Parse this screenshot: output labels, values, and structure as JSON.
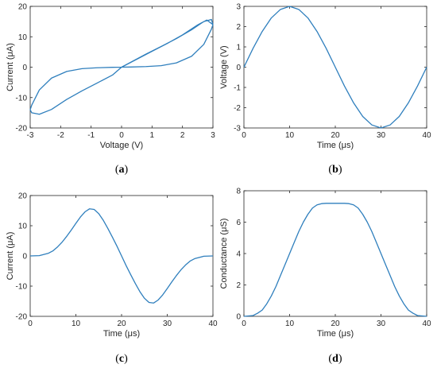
{
  "chart_data": [
    {
      "id": "a",
      "type": "line",
      "panel_label": "a",
      "xlabel": "Voltage (V)",
      "ylabel": "Current (μA)",
      "xlim": [
        -3,
        3
      ],
      "ylim": [
        -20,
        20
      ],
      "xticks": [
        -3,
        -2,
        -1,
        0,
        1,
        2,
        3
      ],
      "yticks": [
        -20,
        -10,
        0,
        10,
        20
      ],
      "series": [
        {
          "x": [
            0,
            0.5,
            1.0,
            1.5,
            2.0,
            2.5,
            2.8,
            3.0,
            2.95,
            2.7,
            2.3,
            1.8,
            1.3,
            0.8,
            0.3,
            0,
            -0.3,
            -0.8,
            -1.3,
            -1.8,
            -2.3,
            -2.7,
            -2.95,
            -3.0,
            -2.95,
            -2.7,
            -2.3,
            -1.8,
            -1.3,
            -0.8,
            -0.3,
            0,
            0.3,
            0.8,
            1.3,
            1.8,
            2.3,
            2.7,
            2.95,
            3.0
          ],
          "y": [
            0,
            2.6,
            5.2,
            7.8,
            10.6,
            13.9,
            15.5,
            14,
            12.5,
            7.5,
            3.6,
            1.4,
            0.5,
            0.2,
            0.05,
            0,
            -0.05,
            -0.2,
            -0.5,
            -1.4,
            -3.6,
            -7.5,
            -12.5,
            -14,
            -15,
            -15.5,
            -13.9,
            -10.6,
            -7.8,
            -5.2,
            -2.6,
            0,
            1.6,
            4.3,
            6.8,
            9.4,
            12.3,
            15.0,
            15.7,
            14
          ]
        }
      ]
    },
    {
      "id": "b",
      "type": "line",
      "panel_label": "b",
      "xlabel": "Time (μs)",
      "ylabel": "Voltage (V)",
      "xlim": [
        0,
        40
      ],
      "ylim": [
        -3,
        3
      ],
      "xticks": [
        0,
        10,
        20,
        30,
        40
      ],
      "yticks": [
        -3,
        -2,
        -1,
        0,
        1,
        2,
        3
      ],
      "series": [
        {
          "x": [
            0,
            2,
            4,
            6,
            8,
            10,
            12,
            14,
            16,
            18,
            20,
            22,
            24,
            26,
            28,
            30,
            32,
            34,
            36,
            38,
            40
          ],
          "y": [
            0,
            0.93,
            1.76,
            2.43,
            2.85,
            3.0,
            2.85,
            2.43,
            1.76,
            0.93,
            0,
            -0.93,
            -1.76,
            -2.43,
            -2.85,
            -3.0,
            -2.85,
            -2.43,
            -1.76,
            -0.93,
            0
          ]
        }
      ]
    },
    {
      "id": "c",
      "type": "line",
      "panel_label": "c",
      "xlabel": "Time (μs)",
      "ylabel": "Current (μA)",
      "xlim": [
        0,
        40
      ],
      "ylim": [
        -20,
        20
      ],
      "xticks": [
        0,
        10,
        20,
        30,
        40
      ],
      "yticks": [
        -20,
        -10,
        0,
        10,
        20
      ],
      "series": [
        {
          "x": [
            0,
            2,
            4,
            5,
            6,
            7,
            8,
            9,
            10,
            11,
            12,
            13,
            14,
            15,
            16,
            17,
            18,
            19,
            20,
            21,
            22,
            23,
            24,
            25,
            26,
            27,
            28,
            29,
            30,
            31,
            32,
            33,
            34,
            35,
            36,
            38,
            40
          ],
          "y": [
            0,
            0.1,
            0.9,
            1.7,
            3.0,
            4.6,
            6.5,
            8.6,
            10.8,
            12.9,
            14.6,
            15.6,
            15.4,
            14.0,
            11.8,
            9.1,
            6.2,
            3.2,
            0,
            -3.2,
            -6.2,
            -9.1,
            -11.8,
            -14.0,
            -15.4,
            -15.6,
            -14.6,
            -12.9,
            -10.8,
            -8.6,
            -6.5,
            -4.6,
            -3.0,
            -1.7,
            -0.9,
            -0.1,
            0
          ]
        }
      ]
    },
    {
      "id": "d",
      "type": "line",
      "panel_label": "d",
      "xlabel": "Time (μs)",
      "ylabel": "Conductance (μS)",
      "xlim": [
        0,
        40
      ],
      "ylim": [
        0,
        8
      ],
      "xticks": [
        0,
        10,
        20,
        30,
        40
      ],
      "yticks": [
        0,
        2,
        4,
        6,
        8
      ],
      "series": [
        {
          "x": [
            0,
            2,
            3,
            4,
            5,
            6,
            7,
            8,
            9,
            10,
            11,
            12,
            13,
            14,
            15,
            16,
            17,
            18,
            20,
            22,
            23,
            24,
            25,
            26,
            27,
            28,
            29,
            30,
            31,
            32,
            33,
            34,
            35,
            36,
            37,
            38,
            40
          ],
          "y": [
            0,
            0.05,
            0.2,
            0.4,
            0.8,
            1.3,
            1.9,
            2.6,
            3.3,
            4.0,
            4.7,
            5.4,
            6.0,
            6.5,
            6.9,
            7.1,
            7.18,
            7.2,
            7.2,
            7.2,
            7.18,
            7.1,
            6.9,
            6.5,
            6.0,
            5.4,
            4.7,
            4.0,
            3.3,
            2.6,
            1.9,
            1.3,
            0.8,
            0.4,
            0.2,
            0.05,
            0
          ]
        }
      ]
    }
  ]
}
